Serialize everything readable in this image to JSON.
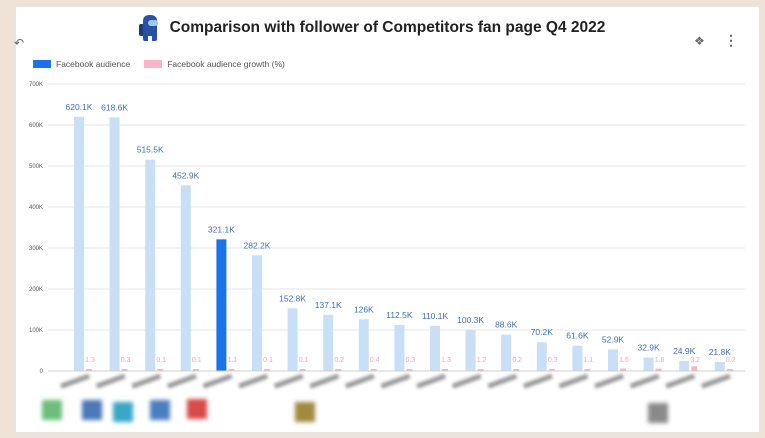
{
  "header": {
    "title": "Comparison with follower of Competitors fan page Q4 2022"
  },
  "icons": {
    "mascot": "crewmate-mascot-icon",
    "back": "undo-icon",
    "settings": "pin-icon",
    "more": "more-vertical-icon"
  },
  "legend": {
    "items": [
      {
        "label": "Facebook audience",
        "color": "#1a73e8"
      },
      {
        "label": "Facebook audience growth (%)",
        "color": "#f7b6c8"
      }
    ]
  },
  "chart_data": {
    "type": "bar",
    "title": "Comparison with follower of Competitors fan page Q4 2022",
    "xlabel": "",
    "ylabel": "",
    "ylim": [
      0,
      700000
    ],
    "y_ticks": [
      "700K",
      "600K",
      "500K",
      "400K",
      "300K",
      "200K",
      "100K",
      "0"
    ],
    "legend_position": "top-left",
    "grid": true,
    "highlight_index": 4,
    "colors": {
      "bar": "#c9dff8",
      "highlight": "#1a73e8",
      "growth": "#f7b6c8"
    },
    "series": [
      {
        "name": "Facebook audience",
        "values": [
          620100,
          618600,
          515500,
          452900,
          321100,
          282200,
          152800,
          137100,
          126000,
          112500,
          110100,
          100300,
          88600,
          70200,
          61600,
          52900,
          32900,
          24900,
          21800
        ],
        "labels": [
          "620.1K",
          "618.6K",
          "515.5K",
          "452.9K",
          "321.1K",
          "282.2K",
          "152.8K",
          "137.1K",
          "126K",
          "112.5K",
          "110.1K",
          "100.3K",
          "88.6K",
          "70.2K",
          "61.6K",
          "52.9K",
          "32.9K",
          "24.9K",
          "21.8K"
        ]
      },
      {
        "name": "Facebook audience growth (%)",
        "values": [
          1.3,
          0.3,
          0.1,
          0.1,
          1.1,
          0.1,
          0.1,
          0.2,
          0.4,
          0.3,
          1.3,
          1.2,
          0.2,
          0.3,
          1.1,
          1.6,
          1.6,
          3.2,
          0.2
        ]
      }
    ],
    "categories_blurred": true
  }
}
